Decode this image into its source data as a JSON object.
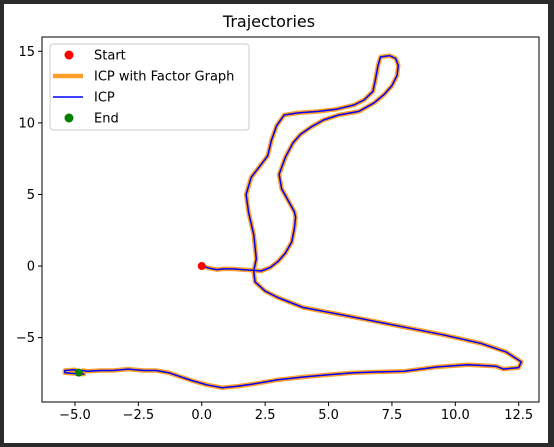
{
  "chart_data": {
    "type": "line",
    "title": "Trajectories",
    "xlabel": "",
    "ylabel": "",
    "xlim": [
      -6.3,
      13.3
    ],
    "ylim": [
      -9.5,
      16.0
    ],
    "xticks": [
      {
        "value": -5.0,
        "label": "−5.0"
      },
      {
        "value": -2.5,
        "label": "−2.5"
      },
      {
        "value": 0.0,
        "label": "0.0"
      },
      {
        "value": 2.5,
        "label": "2.5"
      },
      {
        "value": 5.0,
        "label": "5.0"
      },
      {
        "value": 7.5,
        "label": "7.5"
      },
      {
        "value": 10.0,
        "label": "10.0"
      },
      {
        "value": 12.5,
        "label": "12.5"
      }
    ],
    "yticks": [
      {
        "value": 15,
        "label": "15"
      },
      {
        "value": 10,
        "label": "10"
      },
      {
        "value": 5,
        "label": "5"
      },
      {
        "value": 0,
        "label": "0"
      },
      {
        "value": -5,
        "label": "−5"
      }
    ],
    "grid": false,
    "legend_position": "top-left",
    "legend": [
      {
        "label": "Start",
        "kind": "marker",
        "color": "#ff0000"
      },
      {
        "label": "ICP with Factor Graph",
        "kind": "line",
        "color": "#ff9f29"
      },
      {
        "label": "ICP",
        "kind": "line",
        "color": "#0000ff"
      },
      {
        "label": "End",
        "kind": "marker",
        "color": "#008000"
      }
    ],
    "start": [
      0.0,
      0.0
    ],
    "end": [
      -4.85,
      -7.45
    ],
    "path": [
      [
        0.0,
        0.0
      ],
      [
        0.3,
        -0.15
      ],
      [
        0.6,
        -0.25
      ],
      [
        0.85,
        -0.2
      ],
      [
        1.2,
        -0.2
      ],
      [
        1.6,
        -0.25
      ],
      [
        2.0,
        -0.3
      ],
      [
        2.35,
        -0.35
      ],
      [
        2.7,
        -0.1
      ],
      [
        3.0,
        0.3
      ],
      [
        3.3,
        0.9
      ],
      [
        3.55,
        1.7
      ],
      [
        3.65,
        2.6
      ],
      [
        3.7,
        3.4
      ],
      [
        3.65,
        3.8
      ],
      [
        3.4,
        4.6
      ],
      [
        3.15,
        5.4
      ],
      [
        3.05,
        6.4
      ],
      [
        3.3,
        7.6
      ],
      [
        3.6,
        8.6
      ],
      [
        3.9,
        9.2
      ],
      [
        4.3,
        9.7
      ],
      [
        4.8,
        10.2
      ],
      [
        5.4,
        10.55
      ],
      [
        6.2,
        10.8
      ],
      [
        6.8,
        11.4
      ],
      [
        7.2,
        12.0
      ],
      [
        7.5,
        12.6
      ],
      [
        7.7,
        13.3
      ],
      [
        7.75,
        14.0
      ],
      [
        7.65,
        14.5
      ],
      [
        7.4,
        14.7
      ],
      [
        7.05,
        14.6
      ],
      [
        6.95,
        14.0
      ],
      [
        6.85,
        13.0
      ],
      [
        6.75,
        12.2
      ],
      [
        6.4,
        11.6
      ],
      [
        6.0,
        11.25
      ],
      [
        5.3,
        10.95
      ],
      [
        4.6,
        10.8
      ],
      [
        3.8,
        10.7
      ],
      [
        3.25,
        10.55
      ],
      [
        2.95,
        9.8
      ],
      [
        2.75,
        8.8
      ],
      [
        2.6,
        7.7
      ],
      [
        2.3,
        7.0
      ],
      [
        1.95,
        6.2
      ],
      [
        1.75,
        5.0
      ],
      [
        1.85,
        3.7
      ],
      [
        2.05,
        2.2
      ],
      [
        2.15,
        0.5
      ],
      [
        2.05,
        -0.35
      ],
      [
        2.1,
        -1.1
      ],
      [
        2.5,
        -1.75
      ],
      [
        3.0,
        -2.2
      ],
      [
        4.0,
        -2.9
      ],
      [
        5.5,
        -3.4
      ],
      [
        7.5,
        -4.1
      ],
      [
        9.5,
        -4.8
      ],
      [
        11.0,
        -5.4
      ],
      [
        12.0,
        -6.0
      ],
      [
        12.6,
        -6.7
      ],
      [
        12.5,
        -7.1
      ],
      [
        11.9,
        -7.2
      ],
      [
        11.6,
        -7.0
      ],
      [
        10.5,
        -6.9
      ],
      [
        9.3,
        -7.05
      ],
      [
        8.0,
        -7.35
      ],
      [
        7.0,
        -7.4
      ],
      [
        6.0,
        -7.45
      ],
      [
        5.0,
        -7.6
      ],
      [
        4.0,
        -7.75
      ],
      [
        3.0,
        -7.95
      ],
      [
        2.0,
        -8.25
      ],
      [
        1.4,
        -8.4
      ],
      [
        0.8,
        -8.5
      ],
      [
        0.2,
        -8.3
      ],
      [
        -0.4,
        -8.0
      ],
      [
        -0.9,
        -7.7
      ],
      [
        -1.3,
        -7.45
      ],
      [
        -1.8,
        -7.3
      ],
      [
        -2.3,
        -7.3
      ],
      [
        -2.9,
        -7.2
      ],
      [
        -3.5,
        -7.3
      ],
      [
        -4.0,
        -7.3
      ],
      [
        -4.5,
        -7.35
      ],
      [
        -4.7,
        -7.3
      ],
      [
        -4.85,
        -7.45
      ],
      [
        -4.65,
        -7.55
      ],
      [
        -5.1,
        -7.5
      ],
      [
        -5.4,
        -7.45
      ],
      [
        -5.4,
        -7.3
      ],
      [
        -5.0,
        -7.25
      ],
      [
        -4.8,
        -7.4
      ]
    ]
  }
}
